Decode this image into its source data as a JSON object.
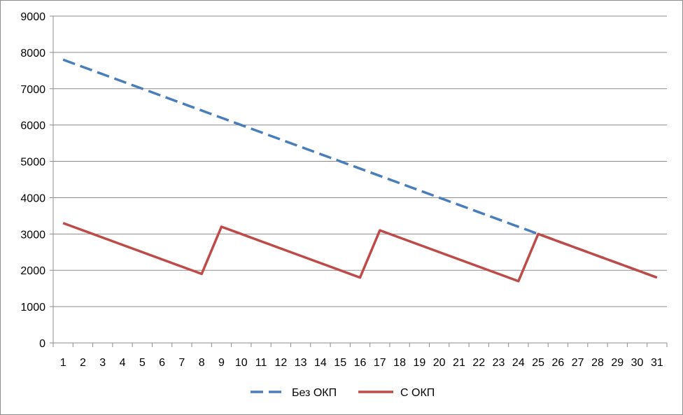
{
  "chart_data": {
    "type": "line",
    "title": "",
    "xlabel": "",
    "ylabel": "",
    "categories": [
      "1",
      "2",
      "3",
      "4",
      "5",
      "6",
      "7",
      "8",
      "9",
      "10",
      "11",
      "12",
      "13",
      "14",
      "15",
      "16",
      "17",
      "18",
      "19",
      "20",
      "21",
      "22",
      "23",
      "24",
      "25",
      "26",
      "27",
      "28",
      "29",
      "30",
      "31"
    ],
    "ylim": [
      0,
      9000
    ],
    "yticks": [
      0,
      1000,
      2000,
      3000,
      4000,
      5000,
      6000,
      7000,
      8000,
      9000
    ],
    "grid": true,
    "legend_position": "bottom",
    "series": [
      {
        "name": "Без ОКП",
        "color": "#4a7ebb",
        "style": "dashed",
        "values": [
          7800,
          7600,
          7400,
          7200,
          7000,
          6800,
          6600,
          6400,
          6200,
          6000,
          5800,
          5600,
          5400,
          5200,
          5000,
          4800,
          4600,
          4400,
          4200,
          4000,
          3800,
          3600,
          3400,
          3200,
          3000,
          2800,
          2600,
          2400,
          2200,
          2000,
          1800
        ]
      },
      {
        "name": "С ОКП",
        "color": "#be4b48",
        "style": "solid",
        "values": [
          3300,
          3100,
          2900,
          2700,
          2500,
          2300,
          2100,
          1900,
          3200,
          3000,
          2800,
          2600,
          2400,
          2200,
          2000,
          1800,
          3100,
          2900,
          2700,
          2500,
          2300,
          2100,
          1900,
          1700,
          3000,
          2800,
          2600,
          2400,
          2200,
          2000,
          1800
        ]
      }
    ]
  }
}
